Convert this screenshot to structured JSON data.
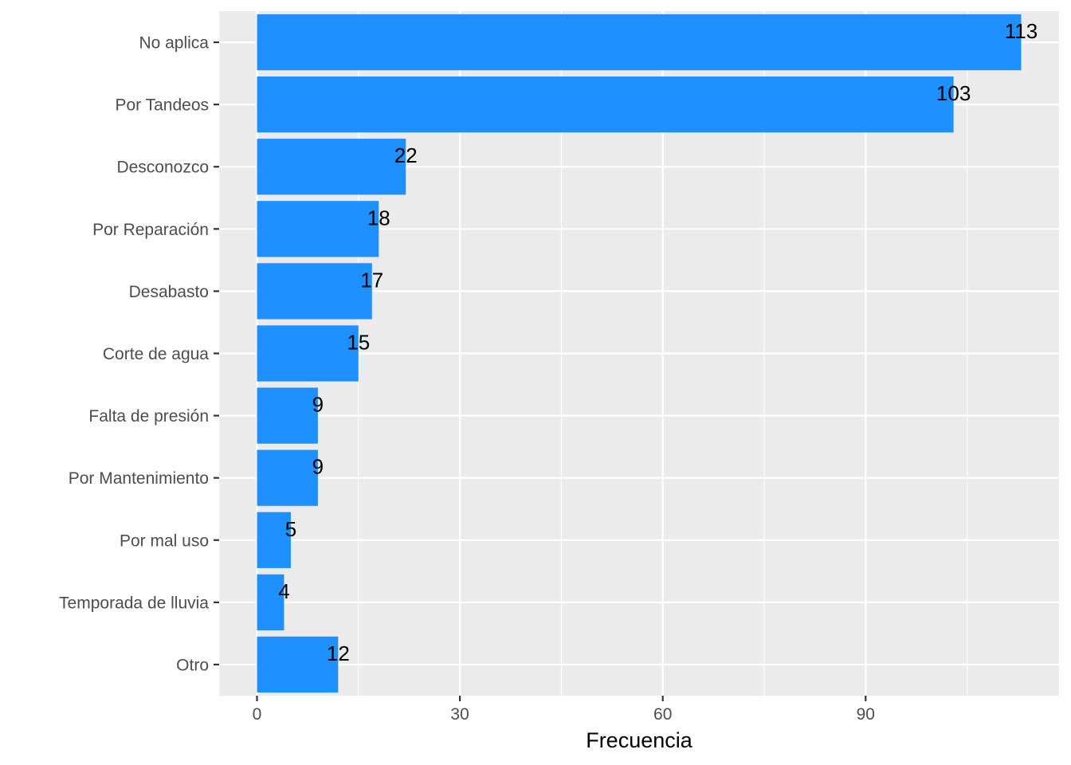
{
  "chart_data": {
    "type": "bar",
    "orientation": "horizontal",
    "title": "",
    "xlabel": "Frecuencia",
    "ylabel": "",
    "categories": [
      "No aplica",
      "Por Tandeos",
      "Desconozco",
      "Por Reparación",
      "Desabasto",
      "Corte de agua",
      "Falta de presión",
      "Por Mantenimiento",
      "Por mal uso",
      "Temporada de lluvia",
      "Otro"
    ],
    "values": [
      113,
      103,
      22,
      18,
      17,
      15,
      9,
      9,
      5,
      4,
      12
    ],
    "xlim": [
      -5.6,
      118.6
    ],
    "x_ticks": [
      0,
      30,
      60,
      90
    ],
    "grid": true,
    "legend": "none",
    "colors": {
      "bar": "#1E90FF",
      "panel": "#EBEBEB",
      "grid": "#FFFFFF",
      "tick_text": "#4D4D4D",
      "tick_mark": "#333333"
    }
  }
}
